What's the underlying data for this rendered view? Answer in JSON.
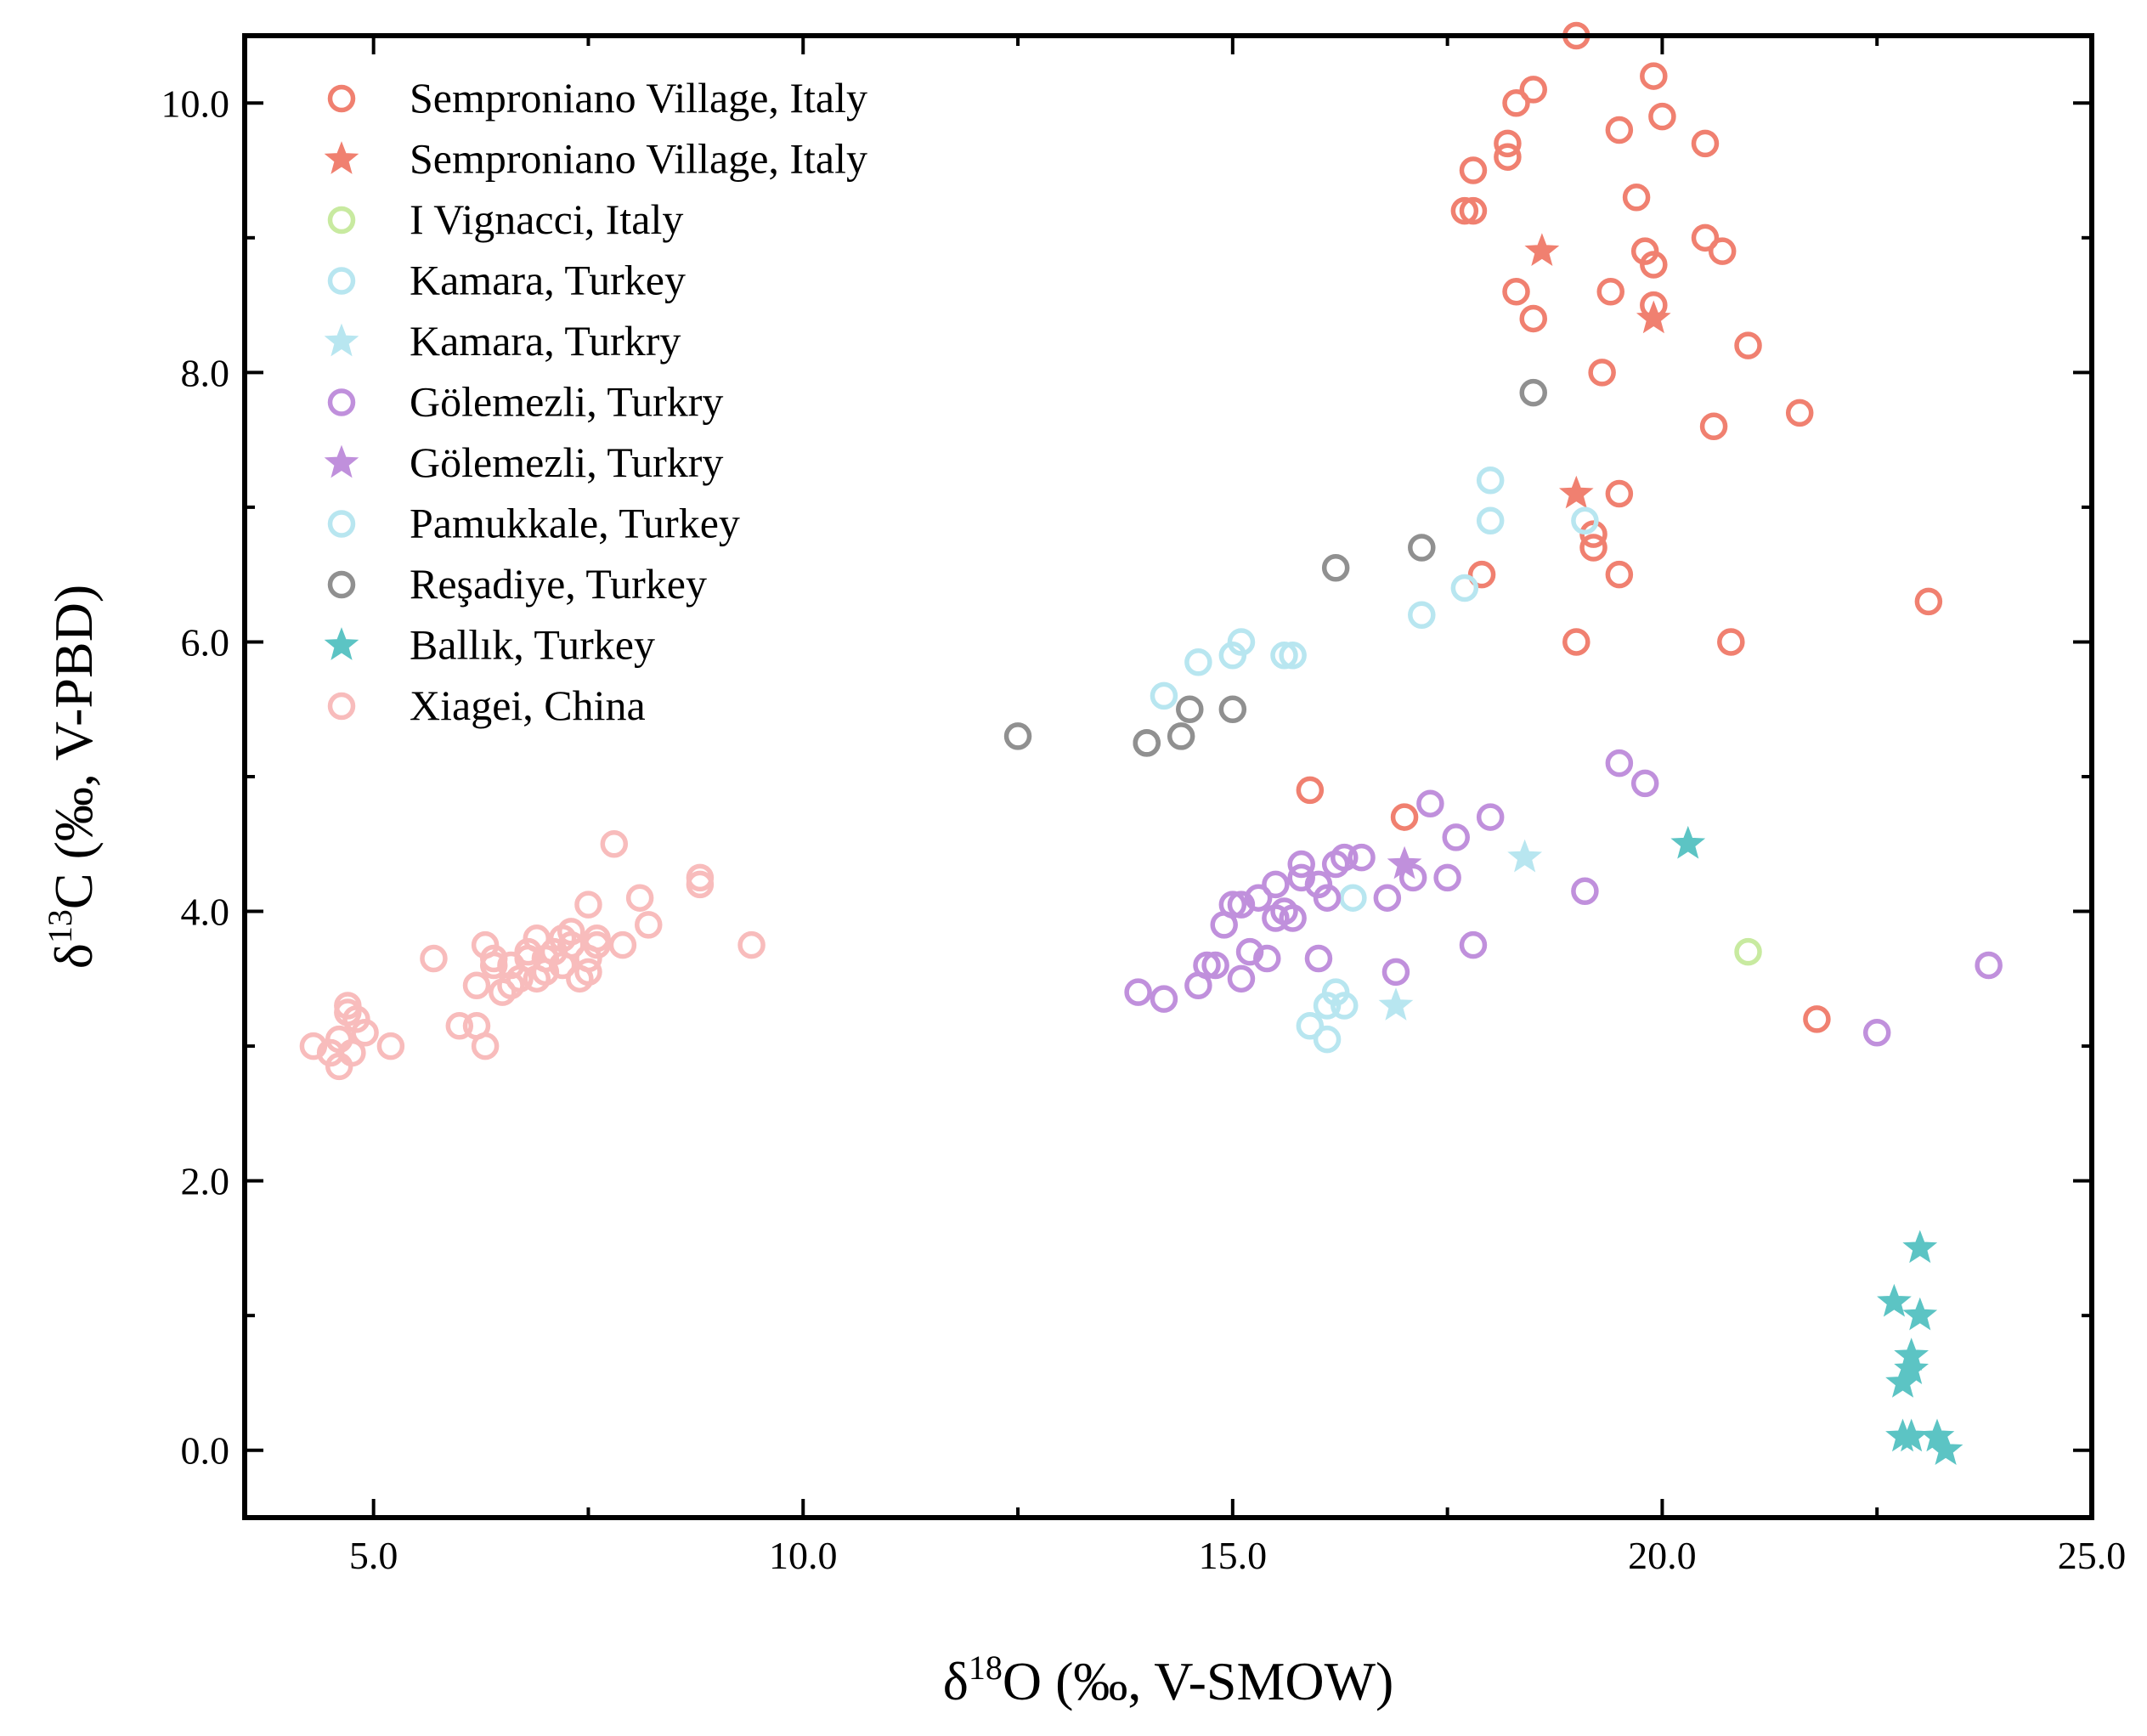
{
  "chart_data": {
    "type": "scatter",
    "title": "",
    "xlabel": "δ18O (‰, V-SMOW)",
    "ylabel": "δ13C (‰, V-PBD)",
    "xlabel_parts": {
      "symbol": "δ",
      "superscript": "18",
      "rest": "O (‰, V-SMOW)"
    },
    "ylabel_parts": {
      "symbol": "δ",
      "superscript": "13",
      "rest": "C (‰, V-PBD)"
    },
    "xlim": [
      3.5,
      25.0
    ],
    "ylim": [
      -0.5,
      10.5
    ],
    "xticks": [
      5,
      10,
      15,
      20,
      25
    ],
    "xtick_labels": [
      "5.0",
      "10.0",
      "15.0",
      "20.0",
      "25.0"
    ],
    "yticks": [
      0,
      2,
      4,
      6,
      8,
      10
    ],
    "ytick_labels": [
      "0.0",
      "2.0",
      "4.0",
      "6.0",
      "8.0",
      "10.0"
    ],
    "grid": false,
    "legend_position": "top-left",
    "series": [
      {
        "name": "Semproniano Village, Italy",
        "marker": "circle",
        "color": "#F08070",
        "x": [
          19.0,
          19.9,
          18.5,
          18.3,
          18.2,
          18.2,
          17.8,
          17.7,
          17.8,
          19.5,
          20.0,
          20.5,
          19.7,
          20.5,
          20.7,
          19.8,
          19.9,
          19.9,
          18.3,
          19.4,
          18.5,
          21.0,
          19.3,
          21.6,
          20.6,
          19.5,
          19.2,
          19.2,
          17.9,
          19.5,
          19.0,
          20.8,
          23.1,
          17.0,
          15.9,
          21.8
        ],
        "y": [
          10.5,
          10.2,
          10.1,
          10.0,
          9.7,
          9.6,
          9.5,
          9.2,
          9.2,
          9.8,
          9.9,
          9.7,
          9.3,
          9.0,
          8.9,
          8.9,
          8.8,
          8.5,
          8.6,
          8.6,
          8.4,
          8.2,
          8.0,
          7.7,
          7.6,
          7.1,
          6.8,
          6.7,
          6.5,
          6.5,
          6.0,
          6.0,
          6.3,
          4.7,
          4.9,
          3.2
        ]
      },
      {
        "name": "Semproniano Village, Italy",
        "marker": "star",
        "color": "#F08070",
        "x": [
          18.6,
          19.9,
          19.0
        ],
        "y": [
          8.9,
          8.4,
          7.1
        ]
      },
      {
        "name": "I Vignacci, Italy",
        "marker": "circle",
        "color": "#C8EAA0",
        "x": [
          21.0
        ],
        "y": [
          3.7
        ]
      },
      {
        "name": "Kamara, Turkey",
        "marker": "circle",
        "color": "#B8E6F0",
        "x": [
          18.0,
          18.0,
          17.7,
          17.2,
          19.1,
          15.1,
          15.0,
          14.6,
          14.2,
          15.6,
          15.7,
          16.4,
          16.2,
          16.3,
          16.1,
          15.9,
          16.1
        ],
        "y": [
          7.2,
          6.9,
          6.4,
          6.2,
          6.9,
          6.0,
          5.9,
          5.85,
          5.6,
          5.9,
          5.9,
          4.1,
          3.4,
          3.3,
          3.3,
          3.15,
          3.05
        ]
      },
      {
        "name": "Kamara, Turkry",
        "marker": "star",
        "color": "#B8E6F0",
        "x": [
          18.4,
          16.9
        ],
        "y": [
          4.4,
          3.3
        ]
      },
      {
        "name": "Gölemezli, Turkry",
        "marker": "circle",
        "color": "#C090DC",
        "x": [
          17.3,
          17.6,
          18.0,
          19.5,
          19.8,
          17.5,
          17.1,
          16.8,
          16.5,
          16.3,
          16.1,
          16.0,
          15.8,
          15.5,
          15.6,
          15.3,
          15.1,
          15.0,
          14.9,
          15.7,
          15.5,
          15.2,
          15.4,
          16.0,
          14.8,
          14.7,
          14.6,
          15.1,
          13.9,
          14.2,
          16.9,
          17.8,
          19.1,
          22.5,
          23.8,
          15.8,
          16.2
        ],
        "y": [
          4.8,
          4.55,
          4.7,
          5.1,
          4.95,
          4.25,
          4.25,
          4.1,
          4.4,
          4.4,
          4.1,
          4.2,
          4.35,
          4.2,
          4.0,
          4.1,
          4.05,
          4.05,
          3.9,
          3.95,
          3.95,
          3.7,
          3.65,
          3.65,
          3.6,
          3.6,
          3.45,
          3.5,
          3.4,
          3.35,
          3.55,
          3.75,
          4.15,
          3.1,
          3.6,
          4.25,
          4.35
        ]
      },
      {
        "name": "Gölemezli, Turkry",
        "marker": "star",
        "color": "#C090DC",
        "x": [
          17.0
        ],
        "y": [
          4.35
        ]
      },
      {
        "name": "Pamukkale, Turkey",
        "marker": "circle",
        "color": "#B8E6F0",
        "x": [],
        "y": []
      },
      {
        "name": "Reşadiye, Turkey",
        "marker": "circle",
        "color": "#909090",
        "x": [
          18.5,
          16.2,
          17.2,
          12.5,
          14.0,
          14.0,
          14.4,
          14.5,
          15.0
        ],
        "y": [
          7.85,
          6.55,
          6.7,
          5.3,
          5.25,
          5.25,
          5.3,
          5.5,
          5.5
        ]
      },
      {
        "name": "Ballık, Turkey",
        "marker": "star",
        "color": "#5CC4C4",
        "x": [
          20.3,
          23.0,
          22.7,
          23.0,
          22.9,
          22.9,
          22.8,
          22.8,
          22.9,
          23.2,
          23.3
        ],
        "y": [
          4.5,
          1.5,
          1.1,
          1.0,
          0.7,
          0.6,
          0.5,
          0.1,
          0.1,
          0.1,
          0.0
        ]
      },
      {
        "name": "Xiagei, China",
        "marker": "circle",
        "color": "#F8BCBC",
        "x": [
          4.3,
          4.5,
          4.6,
          4.6,
          4.7,
          4.7,
          4.75,
          4.8,
          4.9,
          5.2,
          5.7,
          6.0,
          6.2,
          6.3,
          6.3,
          6.4,
          6.5,
          6.6,
          6.7,
          6.8,
          6.8,
          6.9,
          7.0,
          7.1,
          7.2,
          7.3,
          7.4,
          7.5,
          7.6,
          7.6,
          7.8,
          7.9,
          8.1,
          8.2,
          8.8,
          8.8,
          9.4,
          7.5,
          6.2,
          6.4,
          7.0,
          7.3,
          6.6,
          6.9,
          7.2,
          7.5
        ],
        "y": [
          3.0,
          2.95,
          2.85,
          3.05,
          3.3,
          3.25,
          2.95,
          3.2,
          3.1,
          3.0,
          3.65,
          3.15,
          3.45,
          3.0,
          3.75,
          3.6,
          3.4,
          3.6,
          3.5,
          3.65,
          3.7,
          3.8,
          3.55,
          3.7,
          3.8,
          3.85,
          3.5,
          3.65,
          3.75,
          3.8,
          4.5,
          3.75,
          4.1,
          3.9,
          4.2,
          4.25,
          3.75,
          4.05,
          3.15,
          3.65,
          3.65,
          3.75,
          3.45,
          3.5,
          3.6,
          3.55
        ]
      }
    ]
  }
}
